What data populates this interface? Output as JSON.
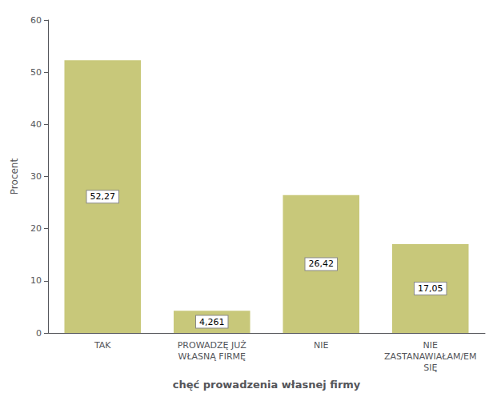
{
  "chart_data": {
    "type": "bar",
    "categories": [
      "TAK",
      "PROWADZĘ JUŻ\nWŁASNĄ FIRMĘ",
      "NIE",
      "NIE\nZASTANAWIAŁAM/EM\nSIĘ"
    ],
    "values": [
      52.27,
      4.261,
      26.42,
      17.05
    ],
    "value_labels": [
      "52,27",
      "4,261",
      "26,42",
      "17,05"
    ],
    "data_labels": true,
    "color": "#c8c87a",
    "xlabel": "chęć prowadzenia własnej firmy",
    "ylabel": "Procent",
    "ylim": [
      0,
      60
    ],
    "yticks": [
      0,
      10,
      20,
      30,
      40,
      50,
      60
    ],
    "grid": false
  }
}
